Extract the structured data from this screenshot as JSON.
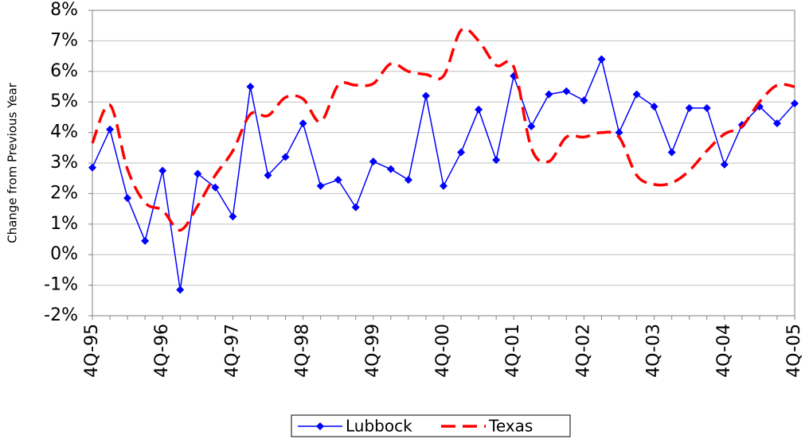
{
  "chart_data": {
    "type": "line",
    "y_label": "Change from Previous Year",
    "categories": [
      "4Q-95",
      null,
      null,
      null,
      "4Q-96",
      null,
      null,
      null,
      "4Q-97",
      null,
      null,
      null,
      "4Q-98",
      null,
      null,
      null,
      "4Q-99",
      null,
      null,
      null,
      "4Q-00",
      null,
      null,
      null,
      "4Q-01",
      null,
      null,
      null,
      "4Q-02",
      null,
      null,
      null,
      "4Q-03",
      null,
      null,
      null,
      "4Q-04",
      null,
      null,
      null,
      "4Q-05"
    ],
    "series": [
      {
        "name": "Lubbock",
        "color": "#0000ff",
        "style": "solid-diamond",
        "values": [
          2.85,
          4.1,
          1.85,
          0.45,
          2.75,
          -1.15,
          2.65,
          2.2,
          1.25,
          5.5,
          2.6,
          3.2,
          4.3,
          2.25,
          2.45,
          1.55,
          3.05,
          2.8,
          2.45,
          5.2,
          2.25,
          3.35,
          4.75,
          3.1,
          5.85,
          4.2,
          5.25,
          5.35,
          5.05,
          6.4,
          4.0,
          5.25,
          4.85,
          3.35,
          4.8,
          4.8,
          2.95,
          4.25,
          4.85,
          4.3,
          4.95
        ]
      },
      {
        "name": "Texas",
        "color": "#ff0000",
        "style": "dashed",
        "values": [
          3.65,
          4.9,
          2.8,
          1.7,
          1.45,
          0.8,
          1.6,
          2.6,
          3.4,
          4.6,
          4.55,
          5.15,
          5.1,
          4.35,
          5.55,
          5.55,
          5.6,
          6.25,
          6.0,
          5.9,
          5.85,
          7.35,
          7.0,
          6.2,
          6.15,
          3.5,
          3.05,
          3.85,
          3.85,
          4.0,
          3.85,
          2.6,
          2.3,
          2.35,
          2.75,
          3.4,
          3.95,
          4.2,
          5.0,
          5.55,
          5.5
        ]
      }
    ],
    "ylim": [
      -2,
      8
    ],
    "yticks": [
      {
        "value": -2,
        "label": "-2%"
      },
      {
        "value": -1,
        "label": "-1%"
      },
      {
        "value": 0,
        "label": "0%"
      },
      {
        "value": 1,
        "label": "1%"
      },
      {
        "value": 2,
        "label": "2%"
      },
      {
        "value": 3,
        "label": "3%"
      },
      {
        "value": 4,
        "label": "4%"
      },
      {
        "value": 5,
        "label": "5%"
      },
      {
        "value": 6,
        "label": "6%"
      },
      {
        "value": 7,
        "label": "7%"
      },
      {
        "value": 8,
        "label": "8%"
      }
    ],
    "grid": true,
    "legend": "bottom"
  }
}
